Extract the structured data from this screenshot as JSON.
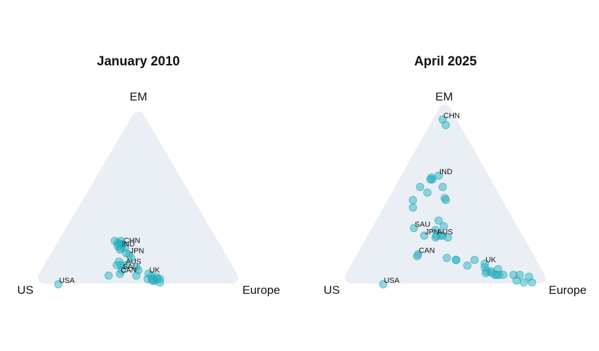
{
  "chart_data": [
    {
      "type": "scatter",
      "subtype": "ternary",
      "title": "January 2010",
      "axes": {
        "top": "EM",
        "left": "US",
        "right": "Europe"
      },
      "colors": {
        "points": "#2bb5c3",
        "background": "#eaeff5"
      },
      "points": [
        {
          "us": 0.46,
          "eu": 0.31,
          "em": 0.23,
          "label": "CHN"
        },
        {
          "us": 0.46,
          "eu": 0.33,
          "em": 0.21
        },
        {
          "us": 0.46,
          "eu": 0.29,
          "em": 0.25
        },
        {
          "us": 0.48,
          "eu": 0.28,
          "em": 0.24
        },
        {
          "us": 0.49,
          "eu": 0.26,
          "em": 0.25
        },
        {
          "us": 0.47,
          "eu": 0.3,
          "em": 0.23
        },
        {
          "us": 0.48,
          "eu": 0.31,
          "em": 0.21,
          "label": "IND"
        },
        {
          "us": 0.48,
          "eu": 0.29,
          "em": 0.23
        },
        {
          "us": 0.49,
          "eu": 0.29,
          "em": 0.22
        },
        {
          "us": 0.49,
          "eu": 0.31,
          "em": 0.2
        },
        {
          "us": 0.46,
          "eu": 0.37,
          "em": 0.17,
          "label": "JPN"
        },
        {
          "us": 0.47,
          "eu": 0.35,
          "em": 0.18
        },
        {
          "us": 0.46,
          "eu": 0.39,
          "em": 0.15
        },
        {
          "us": 0.53,
          "eu": 0.36,
          "em": 0.11
        },
        {
          "us": 0.51,
          "eu": 0.38,
          "em": 0.11,
          "label": "AUS"
        },
        {
          "us": 0.55,
          "eu": 0.34,
          "em": 0.11
        },
        {
          "us": 0.53,
          "eu": 0.34,
          "em": 0.13
        },
        {
          "us": 0.54,
          "eu": 0.38,
          "em": 0.08,
          "label": "SAU"
        },
        {
          "us": 0.46,
          "eu": 0.44,
          "em": 0.1
        },
        {
          "us": 0.46,
          "eu": 0.46,
          "em": 0.08
        },
        {
          "us": 0.41,
          "eu": 0.54,
          "em": 0.05
        },
        {
          "us": 0.56,
          "eu": 0.38,
          "em": 0.06,
          "label": "CAN"
        },
        {
          "us": 0.62,
          "eu": 0.33,
          "em": 0.05
        },
        {
          "us": 0.49,
          "eu": 0.47,
          "em": 0.05
        },
        {
          "us": 0.42,
          "eu": 0.52,
          "em": 0.06,
          "label": "UK"
        },
        {
          "us": 0.44,
          "eu": 0.53,
          "em": 0.03
        },
        {
          "us": 0.41,
          "eu": 0.55,
          "em": 0.03
        },
        {
          "us": 0.42,
          "eu": 0.55,
          "em": 0.03
        },
        {
          "us": 0.41,
          "eu": 0.57,
          "em": 0.02
        },
        {
          "us": 0.42,
          "eu": 0.56,
          "em": 0.02
        },
        {
          "us": 0.39,
          "eu": 0.57,
          "em": 0.04
        },
        {
          "us": 0.39,
          "eu": 0.58,
          "em": 0.03
        },
        {
          "us": 0.38,
          "eu": 0.59,
          "em": 0.03
        },
        {
          "us": 0.39,
          "eu": 0.6,
          "em": 0.01
        },
        {
          "us": 0.89,
          "eu": 0.11,
          "em": 0.0,
          "label": "USA"
        }
      ]
    },
    {
      "type": "scatter",
      "subtype": "ternary",
      "title": "April 2025",
      "axes": {
        "top": "EM",
        "left": "US",
        "right": "Europe"
      },
      "colors": {
        "points": "#2bb5c3",
        "background": "#eaeff5"
      },
      "points": [
        {
          "us": 0.07,
          "eu": 0.05,
          "em": 0.88,
          "label": "CHN"
        },
        {
          "us": 0.07,
          "eu": 0.08,
          "em": 0.85
        },
        {
          "us": 0.28,
          "eu": 0.16,
          "em": 0.56
        },
        {
          "us": 0.24,
          "eu": 0.18,
          "em": 0.58,
          "label": "IND"
        },
        {
          "us": 0.25,
          "eu": 0.23,
          "em": 0.52
        },
        {
          "us": 0.28,
          "eu": 0.15,
          "em": 0.57
        },
        {
          "us": 0.29,
          "eu": 0.15,
          "em": 0.56
        },
        {
          "us": 0.36,
          "eu": 0.12,
          "em": 0.52
        },
        {
          "us": 0.34,
          "eu": 0.17,
          "em": 0.49
        },
        {
          "us": 0.43,
          "eu": 0.12,
          "em": 0.45
        },
        {
          "us": 0.27,
          "eu": 0.27,
          "em": 0.46
        },
        {
          "us": 0.27,
          "eu": 0.28,
          "em": 0.45
        },
        {
          "us": 0.45,
          "eu": 0.14,
          "em": 0.41
        },
        {
          "us": 0.36,
          "eu": 0.3,
          "em": 0.34
        },
        {
          "us": 0.35,
          "eu": 0.34,
          "em": 0.31
        },
        {
          "us": 0.4,
          "eu": 0.31,
          "em": 0.29
        },
        {
          "us": 0.5,
          "eu": 0.2,
          "em": 0.3,
          "label": "SAU"
        },
        {
          "us": 0.39,
          "eu": 0.35,
          "em": 0.26
        },
        {
          "us": 0.38,
          "eu": 0.36,
          "em": 0.26
        },
        {
          "us": 0.47,
          "eu": 0.27,
          "em": 0.26,
          "label": "JPN"
        },
        {
          "us": 0.42,
          "eu": 0.33,
          "em": 0.25
        },
        {
          "us": 0.41,
          "eu": 0.33,
          "em": 0.26,
          "label": "AUS"
        },
        {
          "us": 0.36,
          "eu": 0.39,
          "em": 0.25
        },
        {
          "us": 0.55,
          "eu": 0.29,
          "em": 0.16,
          "label": "CAN"
        },
        {
          "us": 0.56,
          "eu": 0.29,
          "em": 0.15
        },
        {
          "us": 0.42,
          "eu": 0.44,
          "em": 0.14
        },
        {
          "us": 0.38,
          "eu": 0.49,
          "em": 0.13
        },
        {
          "us": 0.38,
          "eu": 0.49,
          "em": 0.13
        },
        {
          "us": 0.29,
          "eu": 0.58,
          "em": 0.13
        },
        {
          "us": 0.34,
          "eu": 0.56,
          "em": 0.1
        },
        {
          "us": 0.25,
          "eu": 0.64,
          "em": 0.11,
          "label": "UK"
        },
        {
          "us": 0.26,
          "eu": 0.65,
          "em": 0.09
        },
        {
          "us": 0.26,
          "eu": 0.67,
          "em": 0.07
        },
        {
          "us": 0.27,
          "eu": 0.67,
          "em": 0.06
        },
        {
          "us": 0.24,
          "eu": 0.69,
          "em": 0.07
        },
        {
          "us": 0.24,
          "eu": 0.7,
          "em": 0.06
        },
        {
          "us": 0.23,
          "eu": 0.72,
          "em": 0.05
        },
        {
          "us": 0.2,
          "eu": 0.72,
          "em": 0.08
        },
        {
          "us": 0.22,
          "eu": 0.73,
          "em": 0.05
        },
        {
          "us": 0.21,
          "eu": 0.74,
          "em": 0.05
        },
        {
          "us": 0.19,
          "eu": 0.76,
          "em": 0.05
        },
        {
          "us": 0.14,
          "eu": 0.81,
          "em": 0.05
        },
        {
          "us": 0.11,
          "eu": 0.84,
          "em": 0.05
        },
        {
          "us": 0.14,
          "eu": 0.84,
          "em": 0.02
        },
        {
          "us": 0.11,
          "eu": 0.88,
          "em": 0.01
        },
        {
          "us": 0.07,
          "eu": 0.89,
          "em": 0.04
        },
        {
          "us": 0.07,
          "eu": 0.92,
          "em": 0.01
        },
        {
          "us": 0.8,
          "eu": 0.2,
          "em": 0.0,
          "label": "USA"
        }
      ]
    }
  ]
}
